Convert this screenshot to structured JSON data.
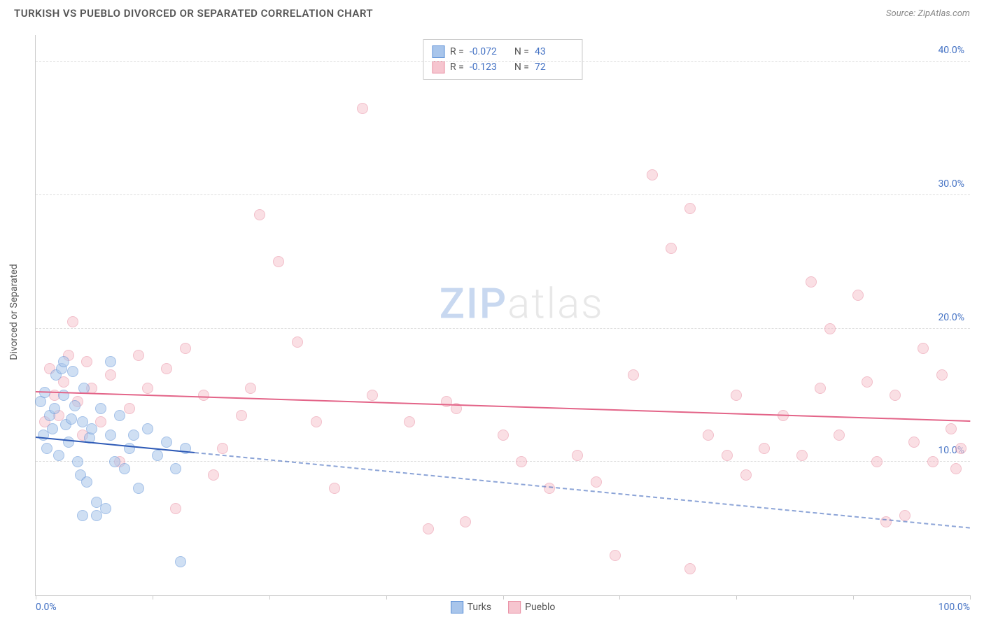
{
  "header": {
    "title": "TURKISH VS PUEBLO DIVORCED OR SEPARATED CORRELATION CHART",
    "source_label": "Source: ZipAtlas.com"
  },
  "chart": {
    "type": "scatter",
    "ylabel": "Divorced or Separated",
    "xlim": [
      0,
      100
    ],
    "ylim": [
      0,
      42
    ],
    "background_color": "#ffffff",
    "grid_color": "#dddddd",
    "yticks": [
      10,
      20,
      30,
      40
    ],
    "ytick_labels": [
      "10.0%",
      "20.0%",
      "30.0%",
      "40.0%"
    ],
    "xticks": [
      0,
      12.5,
      25,
      37.5,
      50,
      62.5,
      75,
      87.5,
      100
    ],
    "xtick_labels_visible": {
      "0": "0.0%",
      "100": "100.0%"
    },
    "point_radius": 8,
    "point_opacity": 0.55,
    "axis_label_color": "#4472c4",
    "series": {
      "turks": {
        "label": "Turks",
        "fill_color": "#a8c5eb",
        "stroke_color": "#5b8fd6",
        "trend_color": "#2f5bb7",
        "trend_solid_xrange": [
          0,
          17
        ],
        "trend_y_intercept": 11.8,
        "trend_y_at_100": 5.0,
        "R": "-0.072",
        "N": "43",
        "points": [
          [
            0.5,
            14.5
          ],
          [
            0.8,
            12.0
          ],
          [
            1.0,
            15.2
          ],
          [
            1.2,
            11.0
          ],
          [
            1.5,
            13.5
          ],
          [
            1.8,
            12.5
          ],
          [
            2.0,
            14.0
          ],
          [
            2.2,
            16.5
          ],
          [
            2.5,
            10.5
          ],
          [
            2.8,
            17.0
          ],
          [
            3.0,
            15.0
          ],
          [
            3.2,
            12.8
          ],
          [
            3.5,
            11.5
          ],
          [
            3.8,
            13.2
          ],
          [
            4.0,
            16.8
          ],
          [
            4.2,
            14.2
          ],
          [
            4.5,
            10.0
          ],
          [
            4.8,
            9.0
          ],
          [
            5.0,
            13.0
          ],
          [
            5.2,
            15.5
          ],
          [
            5.5,
            8.5
          ],
          [
            5.8,
            11.8
          ],
          [
            6.0,
            12.5
          ],
          [
            6.5,
            7.0
          ],
          [
            7.0,
            14.0
          ],
          [
            7.5,
            6.5
          ],
          [
            8.0,
            12.0
          ],
          [
            8.5,
            10.0
          ],
          [
            9.0,
            13.5
          ],
          [
            9.5,
            9.5
          ],
          [
            10.0,
            11.0
          ],
          [
            10.5,
            12.0
          ],
          [
            11.0,
            8.0
          ],
          [
            12.0,
            12.5
          ],
          [
            13.0,
            10.5
          ],
          [
            14.0,
            11.5
          ],
          [
            15.0,
            9.5
          ],
          [
            16.0,
            11.0
          ],
          [
            15.5,
            2.5
          ],
          [
            8.0,
            17.5
          ],
          [
            3.0,
            17.5
          ],
          [
            5.0,
            6.0
          ],
          [
            6.5,
            6.0
          ]
        ]
      },
      "pueblo": {
        "label": "Pueblo",
        "fill_color": "#f6c5cf",
        "stroke_color": "#e88ba0",
        "trend_color": "#e36488",
        "trend_solid_xrange": [
          0,
          100
        ],
        "trend_y_intercept": 15.2,
        "trend_y_at_100": 13.0,
        "R": "-0.123",
        "N": "72",
        "points": [
          [
            1.0,
            13.0
          ],
          [
            1.5,
            17.0
          ],
          [
            2.0,
            15.0
          ],
          [
            2.5,
            13.5
          ],
          [
            3.0,
            16.0
          ],
          [
            3.5,
            18.0
          ],
          [
            4.0,
            20.5
          ],
          [
            4.5,
            14.5
          ],
          [
            5.0,
            12.0
          ],
          [
            5.5,
            17.5
          ],
          [
            6.0,
            15.5
          ],
          [
            7.0,
            13.0
          ],
          [
            8.0,
            16.5
          ],
          [
            9.0,
            10.0
          ],
          [
            10.0,
            14.0
          ],
          [
            11.0,
            18.0
          ],
          [
            12.0,
            15.5
          ],
          [
            14.0,
            17.0
          ],
          [
            15.0,
            6.5
          ],
          [
            16.0,
            18.5
          ],
          [
            18.0,
            15.0
          ],
          [
            19.0,
            9.0
          ],
          [
            20.0,
            11.0
          ],
          [
            22.0,
            13.5
          ],
          [
            23.0,
            15.5
          ],
          [
            24.0,
            28.5
          ],
          [
            26.0,
            25.0
          ],
          [
            28.0,
            19.0
          ],
          [
            30.0,
            13.0
          ],
          [
            32.0,
            8.0
          ],
          [
            35.0,
            36.5
          ],
          [
            36.0,
            15.0
          ],
          [
            40.0,
            13.0
          ],
          [
            42.0,
            5.0
          ],
          [
            44.0,
            14.5
          ],
          [
            45.0,
            14.0
          ],
          [
            46.0,
            5.5
          ],
          [
            50.0,
            12.0
          ],
          [
            52.0,
            10.0
          ],
          [
            55.0,
            8.0
          ],
          [
            58.0,
            10.5
          ],
          [
            60.0,
            8.5
          ],
          [
            62.0,
            3.0
          ],
          [
            64.0,
            16.5
          ],
          [
            66.0,
            31.5
          ],
          [
            68.0,
            26.0
          ],
          [
            70.0,
            29.0
          ],
          [
            70.0,
            2.0
          ],
          [
            72.0,
            12.0
          ],
          [
            74.0,
            10.5
          ],
          [
            75.0,
            15.0
          ],
          [
            76.0,
            9.0
          ],
          [
            78.0,
            11.0
          ],
          [
            80.0,
            13.5
          ],
          [
            82.0,
            10.5
          ],
          [
            83.0,
            23.5
          ],
          [
            84.0,
            15.5
          ],
          [
            85.0,
            20.0
          ],
          [
            86.0,
            12.0
          ],
          [
            88.0,
            22.5
          ],
          [
            89.0,
            16.0
          ],
          [
            90.0,
            10.0
          ],
          [
            91.0,
            5.5
          ],
          [
            92.0,
            15.0
          ],
          [
            93.0,
            6.0
          ],
          [
            94.0,
            11.5
          ],
          [
            95.0,
            18.5
          ],
          [
            96.0,
            10.0
          ],
          [
            97.0,
            16.5
          ],
          [
            98.0,
            12.5
          ],
          [
            98.5,
            9.5
          ],
          [
            99.0,
            11.0
          ]
        ]
      }
    }
  },
  "watermark": {
    "text_zip": "ZIP",
    "text_rest": "atlas"
  },
  "bottom_legend": {
    "label_a": "Turks",
    "label_b": "Pueblo"
  }
}
